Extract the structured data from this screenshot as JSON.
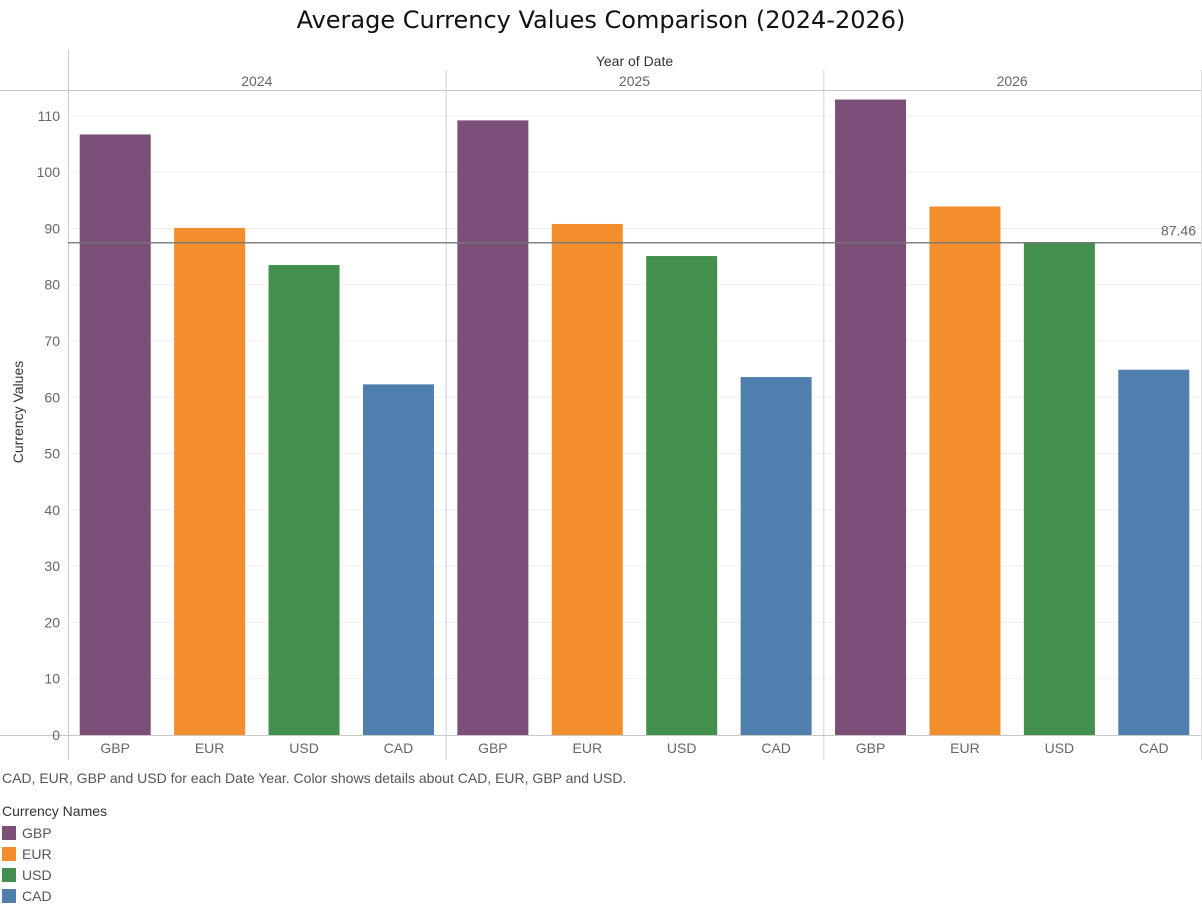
{
  "chart_data": {
    "type": "bar",
    "title": "Average Currency Values Comparison (2024-2026)",
    "column_header": "Year of Date",
    "ylabel": "Currency Values",
    "ylim": [
      0,
      113
    ],
    "yticks": [
      0,
      10,
      20,
      30,
      40,
      50,
      60,
      70,
      80,
      90,
      100,
      110
    ],
    "grid": true,
    "categories": [
      "GBP",
      "EUR",
      "USD",
      "CAD"
    ],
    "colors": {
      "GBP": "#7b4f78",
      "EUR": "#f28e2b",
      "USD": "#43904e",
      "CAD": "#4e7fad"
    },
    "panels": [
      {
        "year": "2024",
        "values": [
          106.7,
          90.1,
          83.5,
          62.3
        ]
      },
      {
        "year": "2025",
        "values": [
          109.2,
          90.8,
          85.1,
          63.6
        ]
      },
      {
        "year": "2026",
        "values": [
          112.9,
          93.9,
          87.6,
          64.9
        ]
      }
    ],
    "reference_line": {
      "value": 87.46,
      "label": "87.46"
    },
    "caption": "CAD, EUR, GBP and USD for each Date Year.  Color shows details about CAD, EUR, GBP and USD.",
    "legend": {
      "title": "Currency Names",
      "placement": "bottom-left",
      "items": [
        {
          "label": "GBP",
          "color": "#7b4f78"
        },
        {
          "label": "EUR",
          "color": "#f28e2b"
        },
        {
          "label": "USD",
          "color": "#43904e"
        },
        {
          "label": "CAD",
          "color": "#4e7fad"
        }
      ]
    }
  }
}
